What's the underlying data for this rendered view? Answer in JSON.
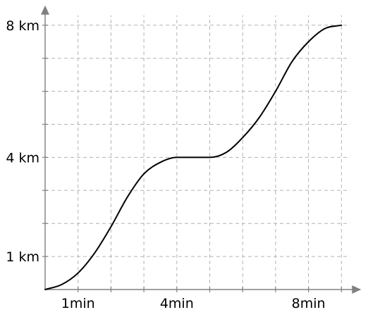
{
  "chart_data": {
    "type": "line",
    "title": "",
    "xlabel": "",
    "ylabel": "",
    "xlim": [
      0,
      9
    ],
    "ylim": [
      0,
      8
    ],
    "x_grid_step": 1,
    "y_grid_step": 1,
    "grid": true,
    "legend": "none",
    "x_ticks": [
      {
        "value": 1,
        "label": "1min"
      },
      {
        "value": 4,
        "label": "4min"
      },
      {
        "value": 8,
        "label": "8min"
      }
    ],
    "y_ticks": [
      {
        "value": 1,
        "label": "1 km"
      },
      {
        "value": 4,
        "label": "4 km"
      },
      {
        "value": 8,
        "label": "8 km"
      }
    ],
    "series": [
      {
        "color": "#000000",
        "x": [
          0,
          0.5,
          1,
          1.5,
          2,
          2.5,
          3,
          3.5,
          4,
          4.5,
          5,
          5.5,
          6,
          6.5,
          7,
          7.5,
          8,
          8.5,
          9
        ],
        "y": [
          0,
          0.15,
          0.5,
          1.1,
          1.9,
          2.8,
          3.5,
          3.85,
          4,
          4,
          4,
          4.15,
          4.6,
          5.2,
          6.0,
          6.9,
          7.5,
          7.9,
          8
        ]
      }
    ]
  }
}
